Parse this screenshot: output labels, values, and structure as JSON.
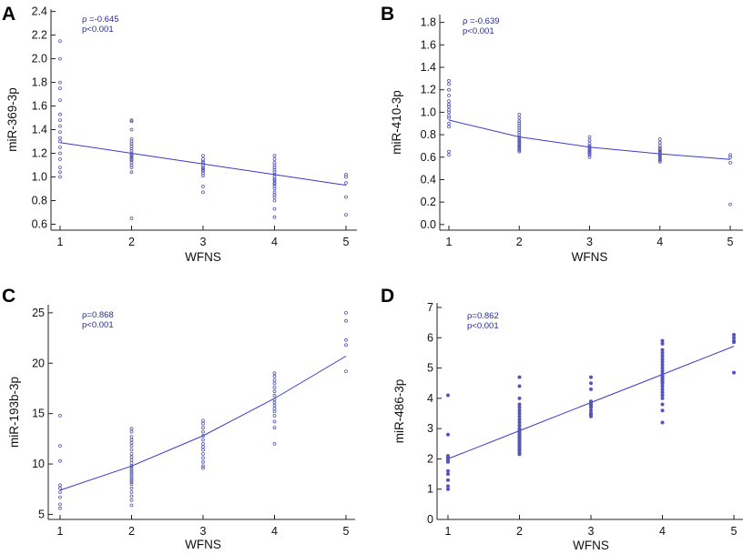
{
  "colors": {
    "marker": "#5555bb",
    "fit_line": "#3a3acc",
    "annotation": "#2a2a9a",
    "axis": "#222222"
  },
  "chart_data": [
    {
      "panel": "A",
      "type": "scatter",
      "xlabel": "WFNS",
      "ylabel": "miR-369-3p",
      "xlim": [
        1,
        5
      ],
      "ylim": [
        0.55,
        2.42
      ],
      "xticks": [
        "1",
        "2",
        "3",
        "4",
        "5"
      ],
      "yticks": [
        0.6,
        0.8,
        1.0,
        1.2,
        1.4,
        1.6,
        1.8,
        2.0,
        2.2,
        2.4
      ],
      "ytick_labels": [
        "0.6",
        "0.8",
        "1.0",
        "1.2",
        "1.4",
        "1.6",
        "1.8",
        "2.0",
        "2.2",
        "2.4"
      ],
      "annotations": [
        "ρ =-0.645",
        "p<0.001"
      ],
      "fit": {
        "x": [
          1,
          2,
          3,
          4,
          5
        ],
        "y": [
          1.29,
          1.2,
          1.11,
          1.02,
          0.93
        ]
      },
      "series": [
        {
          "x": 1,
          "values": [
            2.15,
            2.0,
            1.8,
            1.75,
            1.65,
            1.53,
            1.48,
            1.43,
            1.38,
            1.33,
            1.3,
            1.25,
            1.2,
            1.15,
            1.08,
            1.04,
            1.0
          ]
        },
        {
          "x": 2,
          "values": [
            1.48,
            1.47,
            1.4,
            1.32,
            1.3,
            1.28,
            1.26,
            1.24,
            1.22,
            1.2,
            1.19,
            1.18,
            1.17,
            1.16,
            1.15,
            1.14,
            1.12,
            1.1,
            1.08,
            1.04,
            0.65
          ]
        },
        {
          "x": 3,
          "values": [
            1.18,
            1.15,
            1.13,
            1.12,
            1.1,
            1.08,
            1.07,
            1.06,
            1.05,
            1.03,
            1.01,
            0.92,
            0.87
          ]
        },
        {
          "x": 4,
          "values": [
            1.18,
            1.15,
            1.12,
            1.1,
            1.08,
            1.06,
            1.04,
            1.02,
            1.0,
            0.98,
            0.97,
            0.95,
            0.94,
            0.92,
            0.9,
            0.87,
            0.85,
            0.83,
            0.8,
            0.73,
            0.66
          ]
        },
        {
          "x": 5,
          "values": [
            1.02,
            1.0,
            0.95,
            0.83,
            0.68
          ]
        }
      ]
    },
    {
      "panel": "B",
      "type": "scatter",
      "xlabel": "WFNS",
      "ylabel": "miR-410-3p",
      "xlim": [
        1,
        5
      ],
      "ylim": [
        -0.05,
        1.87
      ],
      "xticks": [
        "1",
        "2",
        "3",
        "4",
        "5"
      ],
      "yticks": [
        0.0,
        0.2,
        0.4,
        0.6,
        0.8,
        1.0,
        1.2,
        1.4,
        1.6,
        1.8
      ],
      "ytick_labels": [
        "0.0",
        "0.2",
        "0.4",
        "0.6",
        "0.8",
        "1.0",
        "1.2",
        "1.4",
        "1.6",
        "1.8"
      ],
      "annotations": [
        "ρ =-0.639",
        "p<0.001"
      ],
      "fit": {
        "x": [
          1,
          2,
          3,
          4,
          5
        ],
        "y": [
          0.93,
          0.78,
          0.69,
          0.63,
          0.58
        ]
      },
      "series": [
        {
          "x": 1,
          "values": [
            1.28,
            1.25,
            1.2,
            1.15,
            1.1,
            1.07,
            1.05,
            1.02,
            1.0,
            0.97,
            0.95,
            0.9,
            0.87,
            0.65,
            0.62
          ]
        },
        {
          "x": 2,
          "values": [
            0.98,
            0.95,
            0.92,
            0.9,
            0.88,
            0.86,
            0.84,
            0.82,
            0.8,
            0.78,
            0.77,
            0.76,
            0.75,
            0.74,
            0.73,
            0.72,
            0.71,
            0.7,
            0.69,
            0.68,
            0.67,
            0.66,
            0.65
          ]
        },
        {
          "x": 3,
          "values": [
            0.78,
            0.75,
            0.72,
            0.7,
            0.69,
            0.68,
            0.67,
            0.66,
            0.65,
            0.64,
            0.63,
            0.62,
            0.6
          ]
        },
        {
          "x": 4,
          "values": [
            0.76,
            0.73,
            0.7,
            0.68,
            0.67,
            0.66,
            0.65,
            0.64,
            0.63,
            0.62,
            0.61,
            0.6,
            0.59,
            0.58,
            0.57,
            0.56
          ]
        },
        {
          "x": 5,
          "values": [
            0.62,
            0.6,
            0.55,
            0.18
          ]
        }
      ]
    },
    {
      "panel": "C",
      "type": "scatter",
      "xlabel": "WFNS",
      "ylabel": "miR-193b-3p",
      "xlim": [
        1,
        5
      ],
      "ylim": [
        4.5,
        25.8
      ],
      "xticks": [
        "1",
        "2",
        "3",
        "4",
        "5"
      ],
      "yticks": [
        5,
        10,
        15,
        20,
        25
      ],
      "ytick_labels": [
        "5",
        "10",
        "15",
        "20",
        "25"
      ],
      "annotations": [
        "ρ=0.868",
        "p<0.001"
      ],
      "fit": {
        "x": [
          1,
          2,
          3,
          4,
          5
        ],
        "y": [
          7.4,
          9.8,
          12.8,
          16.5,
          20.7
        ]
      },
      "series": [
        {
          "x": 1,
          "values": [
            14.8,
            11.8,
            10.3,
            7.9,
            7.6,
            7.2,
            6.7,
            6.0,
            5.6
          ]
        },
        {
          "x": 2,
          "values": [
            13.5,
            13.2,
            12.7,
            12.4,
            12.1,
            11.8,
            11.4,
            11.0,
            10.7,
            10.4,
            10.1,
            9.8,
            9.6,
            9.4,
            9.2,
            9.0,
            8.8,
            8.6,
            8.4,
            8.2,
            8.0,
            7.6,
            7.2,
            6.8,
            6.4,
            5.9
          ]
        },
        {
          "x": 3,
          "values": [
            14.3,
            14.0,
            13.6,
            13.2,
            12.8,
            12.4,
            12.0,
            11.7,
            11.4,
            11.0,
            10.6,
            10.2,
            9.8,
            9.6
          ]
        },
        {
          "x": 4,
          "values": [
            19.0,
            18.7,
            18.3,
            18.0,
            17.6,
            17.2,
            16.8,
            16.4,
            16.1,
            15.8,
            15.5,
            15.2,
            14.8,
            14.2,
            13.6,
            12.0
          ]
        },
        {
          "x": 5,
          "values": [
            25.0,
            24.2,
            22.3,
            21.8,
            19.2
          ]
        }
      ]
    },
    {
      "panel": "D",
      "type": "scatter",
      "xlabel": "WFNS",
      "ylabel": "miR-486-3p",
      "xlim": [
        1,
        5
      ],
      "ylim": [
        0,
        7.15
      ],
      "xticks": [
        "1",
        "2",
        "3",
        "4",
        "5"
      ],
      "yticks": [
        0,
        1,
        2,
        3,
        4,
        5,
        6,
        7
      ],
      "ytick_labels": [
        "0",
        "1",
        "2",
        "3",
        "4",
        "5",
        "6",
        "7"
      ],
      "annotations": [
        "ρ=0.862",
        "p<0.001"
      ],
      "fit": {
        "x": [
          1,
          2,
          3,
          4,
          5
        ],
        "y": [
          2.0,
          2.93,
          3.86,
          4.79,
          5.72
        ]
      },
      "series": [
        {
          "x": 1,
          "values": [
            4.1,
            2.8,
            2.1,
            2.05,
            2.0,
            1.95,
            1.9,
            1.6,
            1.5,
            1.3,
            1.1,
            1.0
          ]
        },
        {
          "x": 2,
          "values": [
            4.7,
            4.4,
            4.0,
            3.8,
            3.7,
            3.6,
            3.5,
            3.4,
            3.3,
            3.2,
            3.1,
            3.0,
            2.95,
            2.9,
            2.85,
            2.8,
            2.75,
            2.7,
            2.65,
            2.6,
            2.55,
            2.5,
            2.45,
            2.4,
            2.35,
            2.3,
            2.25,
            2.2,
            2.15
          ]
        },
        {
          "x": 3,
          "values": [
            4.7,
            4.5,
            4.3,
            3.9,
            3.85,
            3.8,
            3.75,
            3.7,
            3.6,
            3.5,
            3.45,
            3.4
          ]
        },
        {
          "x": 4,
          "values": [
            5.9,
            5.8,
            5.6,
            5.5,
            5.4,
            5.3,
            5.2,
            5.1,
            5.0,
            4.9,
            4.8,
            4.75,
            4.7,
            4.65,
            4.6,
            4.55,
            4.5,
            4.4,
            4.3,
            4.2,
            4.1,
            4.0,
            3.8,
            3.6,
            3.2
          ]
        },
        {
          "x": 5,
          "values": [
            6.1,
            6.0,
            5.9,
            5.85,
            4.85
          ]
        }
      ]
    }
  ]
}
